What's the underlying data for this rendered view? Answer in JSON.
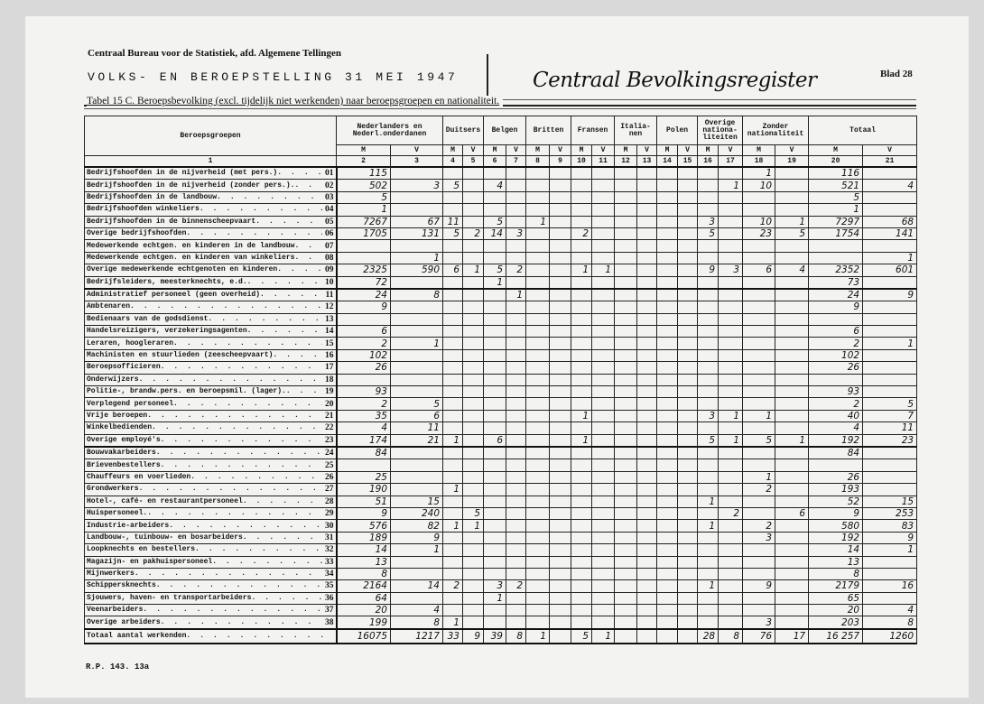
{
  "header": {
    "line1": "Centraal Bureau voor de Statistiek, afd. Algemene Tellingen",
    "title": "VOLKS- EN BEROEPSTELLING 31 MEI 1947",
    "stamp": "Centraal Bevolkingsregister",
    "sheet": "Blad 28",
    "caption": "Tabel 15 C. Beroepsbevolking (excl. tijdelijk niet werkenden) naar beroepsgroepen en nationaliteit."
  },
  "columns": {
    "label": "Beroepsgroepen",
    "groups": [
      "Nederlanders en Nederl.onderdanen",
      "Duitsers",
      "Belgen",
      "Britten",
      "Fransen",
      "Italia-nen",
      "Polen",
      "Overige nationa-liteiten",
      "Zonder nationaliteit",
      "Totaal"
    ],
    "m": "M",
    "v": "V",
    "numbers": [
      "1",
      "2",
      "3",
      "4",
      "5",
      "6",
      "7",
      "8",
      "9",
      "10",
      "11",
      "12",
      "13",
      "14",
      "15",
      "16",
      "17",
      "18",
      "19",
      "20",
      "21"
    ]
  },
  "rows": [
    {
      "label": "Bedrijfshoofden in de nijverheid (met pers.)",
      "code": "01",
      "values": [
        "115",
        "",
        "",
        "",
        "",
        "",
        "",
        "",
        "",
        "",
        "",
        "",
        "",
        "",
        "",
        "",
        "1",
        "",
        "116",
        ""
      ]
    },
    {
      "label": "Bedrijfshoofden in de nijverheid (zonder pers.).",
      "code": "02",
      "values": [
        "502",
        "3",
        "5",
        "",
        "4",
        "",
        "",
        "",
        "",
        "",
        "",
        "",
        "",
        "",
        "",
        "1",
        "10",
        "",
        "521",
        "4"
      ]
    },
    {
      "label": "Bedrijfshoofden in de landbouw",
      "code": "03",
      "values": [
        "5",
        "",
        "",
        "",
        "",
        "",
        "",
        "",
        "",
        "",
        "",
        "",
        "",
        "",
        "",
        "",
        "",
        "",
        "5",
        ""
      ]
    },
    {
      "label": "Bedrijfshoofden winkeliers",
      "code": "04",
      "values": [
        "1",
        "",
        "",
        "",
        "",
        "",
        "",
        "",
        "",
        "",
        "",
        "",
        "",
        "",
        "",
        "",
        "",
        "",
        "1",
        ""
      ]
    },
    {
      "label": "Bedrijfshoofden in de binnenscheepvaart",
      "code": "05",
      "values": [
        "7267",
        "67",
        "11",
        "",
        "5",
        "",
        "1",
        "",
        "",
        "",
        "",
        "",
        "",
        "",
        "3",
        "",
        "10",
        "1",
        "7297",
        "68"
      ]
    },
    {
      "label": "Overige bedrijfshoofden",
      "code": "06",
      "values": [
        "1705",
        "131",
        "5",
        "2",
        "14",
        "3",
        "",
        "",
        "2",
        "",
        "",
        "",
        "",
        "",
        "5",
        "",
        "23",
        "5",
        "1754",
        "141"
      ]
    },
    {
      "label": "Medewerkende echtgen. en kinderen in de landbouw",
      "code": "07",
      "values": [
        "",
        "",
        "",
        "",
        "",
        "",
        "",
        "",
        "",
        "",
        "",
        "",
        "",
        "",
        "",
        "",
        "",
        "",
        "",
        ""
      ]
    },
    {
      "label": "Medewerkende echtgen. en kinderen van winkeliers",
      "code": "08",
      "values": [
        "",
        "1",
        "",
        "",
        "",
        "",
        "",
        "",
        "",
        "",
        "",
        "",
        "",
        "",
        "",
        "",
        "",
        "",
        "",
        "1"
      ]
    },
    {
      "label": "Overige medewerkende  echtgenoten en kinderen",
      "code": "09",
      "values": [
        "2325",
        "590",
        "6",
        "1",
        "5",
        "2",
        "",
        "",
        "1",
        "1",
        "",
        "",
        "",
        "",
        "9",
        "3",
        "6",
        "4",
        "2352",
        "601"
      ]
    },
    {
      "label": "Bedrijfsleiders, meesterknechts, e.d.",
      "code": "10",
      "values": [
        "72",
        "",
        "",
        "",
        "1",
        "",
        "",
        "",
        "",
        "",
        "",
        "",
        "",
        "",
        "",
        "",
        "",
        "",
        "73",
        ""
      ]
    },
    {
      "label": "Administratief personeel (geen overheid)",
      "code": "11",
      "values": [
        "24",
        "8",
        "",
        "",
        "",
        "1",
        "",
        "",
        "",
        "",
        "",
        "",
        "",
        "",
        "",
        "",
        "",
        "",
        "24",
        "9"
      ]
    },
    {
      "label": "Ambtenaren",
      "code": "12",
      "values": [
        "9",
        "",
        "",
        "",
        "",
        "",
        "",
        "",
        "",
        "",
        "",
        "",
        "",
        "",
        "",
        "",
        "",
        "",
        "9",
        ""
      ]
    },
    {
      "label": "Bedienaars van de godsdienst",
      "code": "13",
      "values": [
        "",
        "",
        "",
        "",
        "",
        "",
        "",
        "",
        "",
        "",
        "",
        "",
        "",
        "",
        "",
        "",
        "",
        "",
        "",
        ""
      ]
    },
    {
      "label": "Handelsreizigers, verzekeringsagenten",
      "code": "14",
      "values": [
        "6",
        "",
        "",
        "",
        "",
        "",
        "",
        "",
        "",
        "",
        "",
        "",
        "",
        "",
        "",
        "",
        "",
        "",
        "6",
        ""
      ]
    },
    {
      "label": "Leraren, hoogleraren",
      "code": "15",
      "values": [
        "2",
        "1",
        "",
        "",
        "",
        "",
        "",
        "",
        "",
        "",
        "",
        "",
        "",
        "",
        "",
        "",
        "",
        "",
        "2",
        "1"
      ]
    },
    {
      "label": "Machinisten en stuurlieden (zeescheepvaart)",
      "code": "16",
      "values": [
        "102",
        "",
        "",
        "",
        "",
        "",
        "",
        "",
        "",
        "",
        "",
        "",
        "",
        "",
        "",
        "",
        "",
        "",
        "102",
        ""
      ]
    },
    {
      "label": "Beroepsofficieren",
      "code": "17",
      "values": [
        "26",
        "",
        "",
        "",
        "",
        "",
        "",
        "",
        "",
        "",
        "",
        "",
        "",
        "",
        "",
        "",
        "",
        "",
        "26",
        ""
      ]
    },
    {
      "label": "Onderwijzers",
      "code": "18",
      "values": [
        "",
        "",
        "",
        "",
        "",
        "",
        "",
        "",
        "",
        "",
        "",
        "",
        "",
        "",
        "",
        "",
        "",
        "",
        "",
        ""
      ]
    },
    {
      "label": "Politie-, brandw.pers. en beroepsmil. (lager).",
      "code": "19",
      "values": [
        "93",
        "",
        "",
        "",
        "",
        "",
        "",
        "",
        "",
        "",
        "",
        "",
        "",
        "",
        "",
        "",
        "",
        "",
        "93",
        ""
      ]
    },
    {
      "label": "Verplegend personeel",
      "code": "20",
      "values": [
        "2",
        "5",
        "",
        "",
        "",
        "",
        "",
        "",
        "",
        "",
        "",
        "",
        "",
        "",
        "",
        "",
        "",
        "",
        "2",
        "5"
      ]
    },
    {
      "label": "Vrije beroepen",
      "code": "21",
      "values": [
        "35",
        "6",
        "",
        "",
        "",
        "",
        "",
        "",
        "1",
        "",
        "",
        "",
        "",
        "",
        "3",
        "1",
        "1",
        "",
        "40",
        "7"
      ]
    },
    {
      "label": "Winkelbedienden",
      "code": "22",
      "values": [
        "4",
        "11",
        "",
        "",
        "",
        "",
        "",
        "",
        "",
        "",
        "",
        "",
        "",
        "",
        "",
        "",
        "",
        "",
        "4",
        "11"
      ]
    },
    {
      "label": "Overige employé's",
      "code": "23",
      "values": [
        "174",
        "21",
        "1",
        "",
        "6",
        "",
        "",
        "",
        "1",
        "",
        "",
        "",
        "",
        "",
        "5",
        "1",
        "5",
        "1",
        "192",
        "23"
      ]
    },
    {
      "label": "Bouwvakarbeiders",
      "code": "24",
      "values": [
        "84",
        "",
        "",
        "",
        "",
        "",
        "",
        "",
        "",
        "",
        "",
        "",
        "",
        "",
        "",
        "",
        "",
        "",
        "84",
        ""
      ]
    },
    {
      "label": "Brievenbestellers",
      "code": "25",
      "values": [
        "",
        "",
        "",
        "",
        "",
        "",
        "",
        "",
        "",
        "",
        "",
        "",
        "",
        "",
        "",
        "",
        "",
        "",
        "",
        ""
      ]
    },
    {
      "label": "Chauffeurs en voerlieden",
      "code": "26",
      "values": [
        "25",
        "",
        "",
        "",
        "",
        "",
        "",
        "",
        "",
        "",
        "",
        "",
        "",
        "",
        "",
        "",
        "1",
        "",
        "26",
        ""
      ]
    },
    {
      "label": "Grondwerkers",
      "code": "27",
      "values": [
        "190",
        "",
        "1",
        "",
        "",
        "",
        "",
        "",
        "",
        "",
        "",
        "",
        "",
        "",
        "",
        "",
        "2",
        "",
        "193",
        ""
      ]
    },
    {
      "label": "Hotel-, café- en restaurantpersoneel",
      "code": "28",
      "values": [
        "51",
        "15",
        "",
        "",
        "",
        "",
        "",
        "",
        "",
        "",
        "",
        "",
        "",
        "",
        "1",
        "",
        "",
        "",
        "52",
        "15"
      ]
    },
    {
      "label": "Huispersoneel.",
      "code": "29",
      "values": [
        "9",
        "240",
        "",
        "5",
        "",
        "",
        "",
        "",
        "",
        "",
        "",
        "",
        "",
        "",
        "",
        "2",
        "",
        "6",
        "9",
        "253"
      ]
    },
    {
      "label": "Industrie-arbeiders",
      "code": "30",
      "values": [
        "576",
        "82",
        "1",
        "1",
        "",
        "",
        "",
        "",
        "",
        "",
        "",
        "",
        "",
        "",
        "1",
        "",
        "2",
        "",
        "580",
        "83"
      ]
    },
    {
      "label": "Landbouw-, tuinbouw- en bosarbeiders",
      "code": "31",
      "values": [
        "189",
        "9",
        "",
        "",
        "",
        "",
        "",
        "",
        "",
        "",
        "",
        "",
        "",
        "",
        "",
        "",
        "3",
        "",
        "192",
        "9"
      ]
    },
    {
      "label": "Loopknechts en bestellers",
      "code": "32",
      "values": [
        "14",
        "1",
        "",
        "",
        "",
        "",
        "",
        "",
        "",
        "",
        "",
        "",
        "",
        "",
        "",
        "",
        "",
        "",
        "14",
        "1"
      ]
    },
    {
      "label": "Magazijn- en pakhuispersoneel",
      "code": "33",
      "values": [
        "13",
        "",
        "",
        "",
        "",
        "",
        "",
        "",
        "",
        "",
        "",
        "",
        "",
        "",
        "",
        "",
        "",
        "",
        "13",
        ""
      ]
    },
    {
      "label": "Mijnwerkers",
      "code": "34",
      "values": [
        "8",
        "",
        "",
        "",
        "",
        "",
        "",
        "",
        "",
        "",
        "",
        "",
        "",
        "",
        "",
        "",
        "",
        "",
        "8",
        ""
      ]
    },
    {
      "label": "Schippersknechts",
      "code": "35",
      "values": [
        "2164",
        "14",
        "2",
        "",
        "3",
        "2",
        "",
        "",
        "",
        "",
        "",
        "",
        "",
        "",
        "1",
        "",
        "9",
        "",
        "2179",
        "16"
      ]
    },
    {
      "label": "Sjouwers, haven- en transportarbeiders",
      "code": "36",
      "values": [
        "64",
        "",
        "",
        "",
        "1",
        "",
        "",
        "",
        "",
        "",
        "",
        "",
        "",
        "",
        "",
        "",
        "",
        "",
        "65",
        ""
      ]
    },
    {
      "label": "Veenarbeiders",
      "code": "37",
      "values": [
        "20",
        "4",
        "",
        "",
        "",
        "",
        "",
        "",
        "",
        "",
        "",
        "",
        "",
        "",
        "",
        "",
        "",
        "",
        "20",
        "4"
      ]
    },
    {
      "label": "Overige arbeiders",
      "code": "38",
      "values": [
        "199",
        "8",
        "1",
        "",
        "",
        "",
        "",
        "",
        "",
        "",
        "",
        "",
        "",
        "",
        "",
        "",
        "3",
        "",
        "203",
        "8"
      ]
    }
  ],
  "total": {
    "label": "Totaal aantal werkenden",
    "values": [
      "16075",
      "1217",
      "33",
      "9",
      "39",
      "8",
      "1",
      "",
      "5",
      "1",
      "",
      "",
      "",
      "",
      "28",
      "8",
      "76",
      "17",
      "16 257",
      "1260"
    ]
  },
  "footer": "R.P. 143. 13a"
}
